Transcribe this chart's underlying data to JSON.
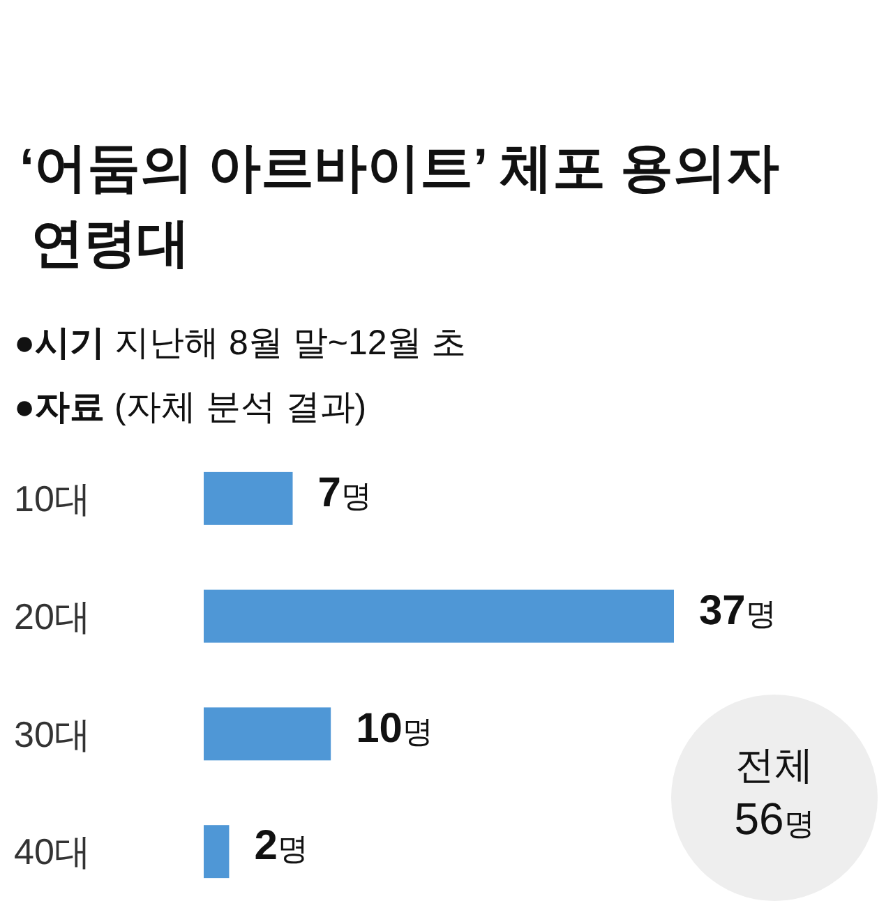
{
  "chart_data": {
    "type": "bar",
    "orientation": "horizontal",
    "title": "‘어둠의 아르바이트’ 체포 용의자 연령대",
    "subtitle": "●시기 지난해 8월 말~12월 초",
    "annotations": [
      "●자료 (자체 분석 결과)",
      "전체 56명"
    ],
    "categories": [
      "10대",
      "20대",
      "30대",
      "40대"
    ],
    "values": [
      7,
      37,
      10,
      2
    ],
    "color": "#4f97d6",
    "xlim": [
      0,
      37
    ],
    "value_labels": [
      "7명",
      "37명",
      "10명",
      "2명"
    ]
  }
}
